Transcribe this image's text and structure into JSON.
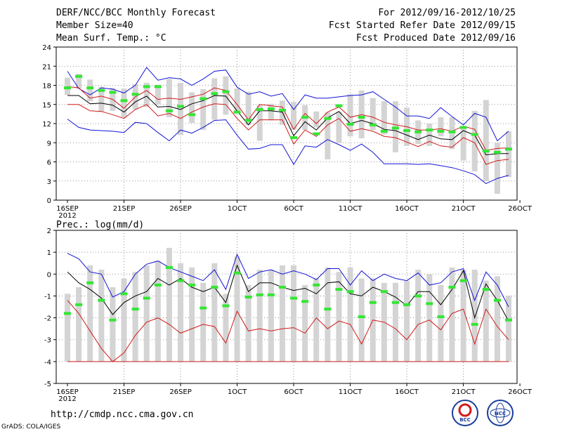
{
  "header": {
    "title": "DERF/NCC/BCC Monthly Forecast",
    "member_size": "Member Size=40",
    "variable": "Mean Surf. Temp.: °C",
    "period": "For 2012/09/16-2012/10/25",
    "started": "Fcst Started Refer Date 2012/09/15",
    "produced": "Fcst Produced Date 2012/09/16"
  },
  "footer": {
    "url": "http://cmdp.ncc.cma.gov.cn",
    "grads": "GrADS: COLA/IGES",
    "logo_bcc": "BCC",
    "logo_ncc": "NCC"
  },
  "colors": {
    "spread": "#d4d4d4",
    "ensemble": "#33e633",
    "mean": "#000000",
    "inner": "#d11a1a",
    "outer": "#1414d6"
  },
  "chart_data": [
    {
      "type": "line",
      "name": "temperature",
      "title": "Mean Surf. Temp.: °C",
      "xlabel": "",
      "ylabel": "°C",
      "ylim": [
        0,
        24
      ],
      "yticks": [
        "0",
        "3",
        "6",
        "9",
        "12",
        "15",
        "18",
        "21",
        "24"
      ],
      "xticks": [
        "16SEP",
        "21SEP",
        "26SEP",
        "1OCT",
        "6OCT",
        "11OCT",
        "16OCT",
        "21OCT",
        "26OCT"
      ],
      "xtick_sub": "2012",
      "x": [
        1,
        2,
        3,
        4,
        5,
        6,
        7,
        8,
        9,
        10,
        11,
        12,
        13,
        14,
        15,
        16,
        17,
        18,
        19,
        20,
        21,
        22,
        23,
        24,
        25,
        26,
        27,
        28,
        29,
        30,
        31,
        32,
        33,
        34,
        35,
        36,
        37,
        38,
        39,
        40
      ],
      "bar_low": [
        16.5,
        17.5,
        15.5,
        13.8,
        14.0,
        13.0,
        14.2,
        14.6,
        15.0,
        13.0,
        10.2,
        12.1,
        11.0,
        12.6,
        13.4,
        14.0,
        11.8,
        9.3,
        12.5,
        11.8,
        11.0,
        11.0,
        11.4,
        6.4,
        9.0,
        10.0,
        9.7,
        11.0,
        10.3,
        7.5,
        8.5,
        8.8,
        8.5,
        10.0,
        8.0,
        6.2,
        4.5,
        3.0,
        1.0,
        3.6
      ],
      "bar_high": [
        19.2,
        19.8,
        18.9,
        17.8,
        17.6,
        17.5,
        18.2,
        18.4,
        18.1,
        19.0,
        18.4,
        16.9,
        17.4,
        19.1,
        19.4,
        17.5,
        17.0,
        14.9,
        15.1,
        15.6,
        15.4,
        14.9,
        13.9,
        13.8,
        13.9,
        16.6,
        17.2,
        16.0,
        15.5,
        15.5,
        14.5,
        12.5,
        12.0,
        13.0,
        13.0,
        11.3,
        14.0,
        15.7,
        9.0,
        10.8
      ],
      "ens_mean": [
        17.6,
        19.4,
        17.6,
        17.2,
        16.9,
        15.6,
        16.6,
        17.8,
        17.8,
        14.0,
        14.7,
        13.4,
        15.9,
        16.7,
        17.0,
        13.8,
        12.5,
        14.2,
        14.3,
        14.1,
        9.8,
        13.0,
        10.4,
        12.8,
        14.8,
        11.9,
        13.0,
        11.8,
        10.8,
        11.3,
        10.9,
        10.7,
        11.0,
        10.8,
        10.7,
        11.4,
        10.3,
        7.7,
        7.5,
        8.0
      ],
      "series": [
        {
          "name": "max",
          "values": [
            20.2,
            17.5,
            16.5,
            17.6,
            17.4,
            16.8,
            18.0,
            20.8,
            18.8,
            19.2,
            19.0,
            18.0,
            19.0,
            20.2,
            20.4,
            17.7,
            16.6,
            17.0,
            16.3,
            16.7,
            14.2,
            16.5,
            16.0,
            16.0,
            16.2,
            16.4,
            16.5,
            17.0,
            15.8,
            14.6,
            13.2,
            13.2,
            12.8,
            14.5,
            13.1,
            11.8,
            13.6,
            13.0,
            9.3,
            10.8
          ]
        },
        {
          "name": "upper",
          "values": [
            17.8,
            17.6,
            16.0,
            16.3,
            15.8,
            14.4,
            16.2,
            17.2,
            15.8,
            16.0,
            15.8,
            16.2,
            16.6,
            17.6,
            17.2,
            15.0,
            12.6,
            15.0,
            14.8,
            14.6,
            11.1,
            13.6,
            12.0,
            13.8,
            14.6,
            13.0,
            13.4,
            13.0,
            12.2,
            11.8,
            11.5,
            11.0,
            11.0,
            11.2,
            10.8,
            11.6,
            11.1,
            7.8,
            8.1,
            8.2
          ]
        },
        {
          "name": "mean",
          "values": [
            16.4,
            16.4,
            15.1,
            15.2,
            14.9,
            13.8,
            15.4,
            16.3,
            14.6,
            14.7,
            14.2,
            15.1,
            15.6,
            16.4,
            16.3,
            14.0,
            11.8,
            14.0,
            14.0,
            13.8,
            10.1,
            12.3,
            11.0,
            12.9,
            13.9,
            12.0,
            12.5,
            12.0,
            11.1,
            10.9,
            10.2,
            9.5,
            10.2,
            9.6,
            9.5,
            10.9,
            10.2,
            7.1,
            7.3,
            7.3
          ]
        },
        {
          "name": "lower",
          "values": [
            15.0,
            15.0,
            14.0,
            13.9,
            13.4,
            12.8,
            14.2,
            15.0,
            13.2,
            13.6,
            12.8,
            13.8,
            14.6,
            15.1,
            15.0,
            12.8,
            11.0,
            12.6,
            12.6,
            12.6,
            8.8,
            11.0,
            10.0,
            11.8,
            12.8,
            10.8,
            11.2,
            10.8,
            10.0,
            9.8,
            9.1,
            8.4,
            9.2,
            8.5,
            8.3,
            9.8,
            9.0,
            5.6,
            6.2,
            6.4
          ]
        },
        {
          "name": "min",
          "values": [
            12.7,
            11.4,
            11.0,
            10.9,
            10.8,
            10.6,
            12.2,
            12.0,
            10.6,
            9.3,
            11.0,
            10.5,
            11.4,
            12.5,
            12.6,
            10.2,
            8.0,
            8.1,
            8.7,
            8.7,
            5.6,
            8.5,
            8.3,
            9.5,
            8.7,
            7.8,
            8.8,
            7.5,
            5.7,
            5.7,
            5.7,
            5.6,
            5.7,
            5.4,
            5.1,
            4.6,
            4.0,
            2.6,
            3.4,
            3.9
          ]
        }
      ]
    },
    {
      "type": "line",
      "name": "precipitation",
      "title": "Prec.: log(mm/d)",
      "xlabel": "",
      "ylabel": "log(mm/d)",
      "ylim": [
        -5,
        2
      ],
      "yticks": [
        "-5",
        "-4",
        "-3",
        "-2",
        "-1",
        "0",
        "1",
        "2"
      ],
      "xticks": [
        "16SEP",
        "21SEP",
        "26SEP",
        "1OCT",
        "6OCT",
        "11OCT",
        "16OCT",
        "21OCT",
        "26OCT"
      ],
      "xtick_sub": "2012",
      "x": [
        1,
        2,
        3,
        4,
        5,
        6,
        7,
        8,
        9,
        10,
        11,
        12,
        13,
        14,
        15,
        16,
        17,
        18,
        19,
        20,
        21,
        22,
        23,
        24,
        25,
        26,
        27,
        28,
        29,
        30,
        31,
        32,
        33,
        34,
        35,
        36,
        37,
        38,
        39,
        40
      ],
      "bar_low": [
        -4,
        -4,
        -4,
        -4,
        -4,
        -4,
        -4,
        -4,
        -4,
        -4,
        -4,
        -4,
        -4,
        -4,
        -4,
        -4,
        -4,
        -4,
        -4,
        -4,
        -4,
        -4,
        -4,
        -4,
        -4,
        -4,
        -4,
        -4,
        -4,
        -4,
        -4,
        -4,
        -4,
        -4,
        -4,
        -4,
        -4,
        -4,
        -4,
        -4
      ],
      "bar_high": [
        -0.9,
        -0.6,
        0.4,
        0.2,
        -0.6,
        -0.2,
        0.1,
        0.4,
        0.6,
        1.2,
        0.5,
        0.3,
        -0.4,
        0.5,
        -0.9,
        0.8,
        -0.5,
        0.2,
        0.2,
        0.4,
        0.4,
        -0.5,
        -0.2,
        0.3,
        0.1,
        0.3,
        -0.2,
        -0.2,
        -0.4,
        -0.4,
        -0.3,
        0.2,
        0.0,
        -0.5,
        0.3,
        0.2,
        0.2,
        -0.3,
        -0.1,
        -1.0
      ],
      "ens_mean": [
        -1.8,
        -1.4,
        -0.4,
        -1.2,
        -2.1,
        -0.9,
        -1.6,
        -1.1,
        -0.5,
        0.3,
        -0.3,
        -0.5,
        -1.55,
        -0.6,
        -1.45,
        0.05,
        -1.05,
        -0.95,
        -0.95,
        -0.6,
        -1.1,
        -1.25,
        -0.5,
        -1.6,
        -0.7,
        -0.8,
        -1.95,
        -1.3,
        -0.8,
        -1.3,
        -1.4,
        -1.0,
        -1.35,
        -1.95,
        -0.6,
        -0.3,
        -2.3,
        -0.7,
        -1.2,
        -2.1
      ],
      "series": [
        {
          "name": "max",
          "values": [
            0.95,
            0.7,
            0.1,
            0.0,
            -1.05,
            -0.8,
            0.0,
            0.45,
            0.6,
            0.3,
            0.1,
            -0.1,
            -0.3,
            0.2,
            -0.7,
            0.9,
            -0.2,
            0.1,
            0.2,
            0.0,
            0.15,
            0.0,
            -0.25,
            0.25,
            0.25,
            -0.5,
            0.15,
            -0.3,
            0.0,
            -0.2,
            -0.3,
            0.05,
            -0.5,
            -0.4,
            0.1,
            0.25,
            -1.2,
            0.1,
            -0.5,
            -1.5
          ]
        },
        {
          "name": "mean",
          "values": [
            0.1,
            -0.4,
            -0.7,
            -1.1,
            -1.85,
            -1.3,
            -1.0,
            -0.8,
            -0.2,
            -0.5,
            -0.2,
            -0.6,
            -0.8,
            -0.6,
            -1.3,
            0.4,
            -0.8,
            -0.4,
            -0.4,
            -0.6,
            -0.75,
            -0.65,
            -0.9,
            -0.4,
            -0.35,
            -0.9,
            -1.0,
            -0.6,
            -0.8,
            -1.05,
            -1.45,
            -0.8,
            -0.8,
            -1.4,
            -0.7,
            0.15,
            -2.0,
            -0.45,
            -1.2,
            -2.15
          ]
        },
        {
          "name": "min",
          "values": [
            -1.2,
            -1.8,
            -2.6,
            -3.4,
            -4.0,
            -3.6,
            -2.8,
            -2.2,
            -2.0,
            -2.3,
            -2.7,
            -2.5,
            -2.3,
            -2.4,
            -3.15,
            -1.7,
            -2.6,
            -2.5,
            -2.6,
            -2.5,
            -2.45,
            -2.7,
            -2.0,
            -2.5,
            -2.15,
            -2.3,
            -3.2,
            -2.1,
            -2.2,
            -2.5,
            -3.0,
            -2.3,
            -2.1,
            -2.55,
            -1.8,
            -1.6,
            -3.2,
            -1.6,
            -2.4,
            -3.0
          ]
        },
        {
          "name": "floor",
          "values": [
            -4,
            -4,
            -4,
            -4,
            -4,
            -4,
            -4,
            -4,
            -4,
            -4,
            -4,
            -4,
            -4,
            -4,
            -4,
            -4,
            -4,
            -4,
            -4,
            -4,
            -4,
            -4,
            -4,
            -4,
            -4,
            -4,
            -4,
            -4,
            -4,
            -4,
            -4,
            -4,
            -4,
            -4,
            -4,
            -4,
            -4,
            -4,
            -4,
            -4
          ]
        }
      ]
    }
  ]
}
